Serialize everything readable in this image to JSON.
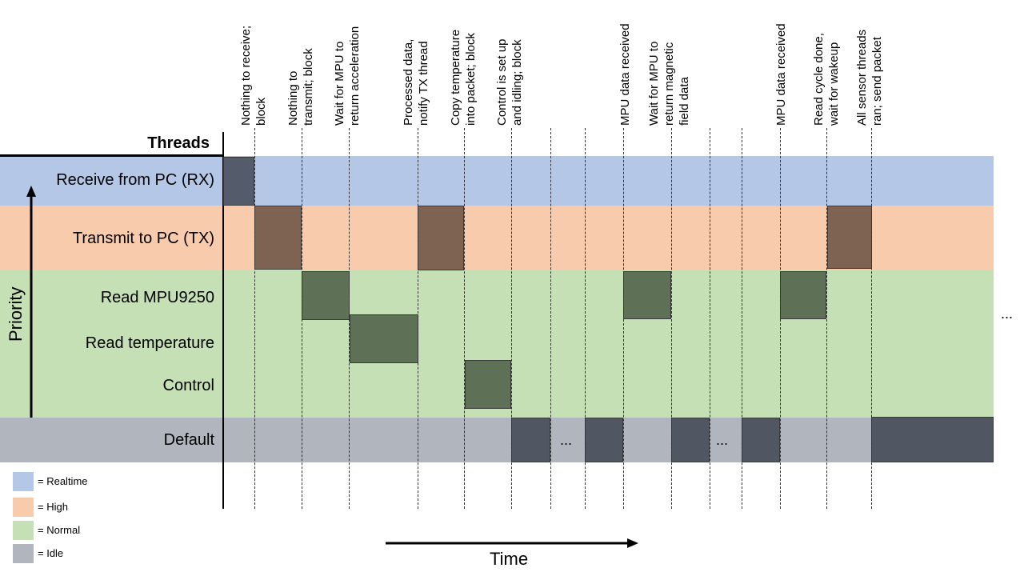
{
  "header": {
    "threads_label": "Threads"
  },
  "rows": {
    "rx": "Receive from PC (RX)",
    "tx": "Transmit to PC (TX)",
    "mpu": "Read MPU9250",
    "temp": "Read temperature",
    "control": "Control",
    "default": "Default"
  },
  "axis": {
    "priority": "Priority",
    "time": "Time"
  },
  "legend": [
    {
      "label": "= Realtime",
      "color": "#b4c7e7"
    },
    {
      "label": "= High",
      "color": "#f8cbad"
    },
    {
      "label": "= Normal",
      "color": "#c5e0b4"
    },
    {
      "label": "= Idle",
      "color": "#b1b5bd"
    }
  ],
  "notes": [
    {
      "lines": [
        "Nothing to receive;",
        "block"
      ]
    },
    {
      "lines": [
        "Nothing to",
        "transmit; block"
      ]
    },
    {
      "lines": [
        "Wait for MPU to",
        "return acceleration"
      ]
    },
    {
      "lines": [
        "Processed data,",
        "notify TX thread"
      ]
    },
    {
      "lines": [
        "Copy temperature",
        "into packet; block"
      ]
    },
    {
      "lines": [
        "Control is set up",
        "and idling; block"
      ]
    },
    {
      "lines": [
        "MPU data received"
      ]
    },
    {
      "lines": [
        "Wait for MPU to",
        "return magnetic",
        "field data"
      ]
    },
    {
      "lines": [
        "MPU data received"
      ]
    },
    {
      "lines": [
        "Read cycle done,",
        "wait for wakeup"
      ]
    },
    {
      "lines": [
        "All sensor threads",
        "ran; send packet"
      ]
    }
  ],
  "ellipsis": "..."
}
